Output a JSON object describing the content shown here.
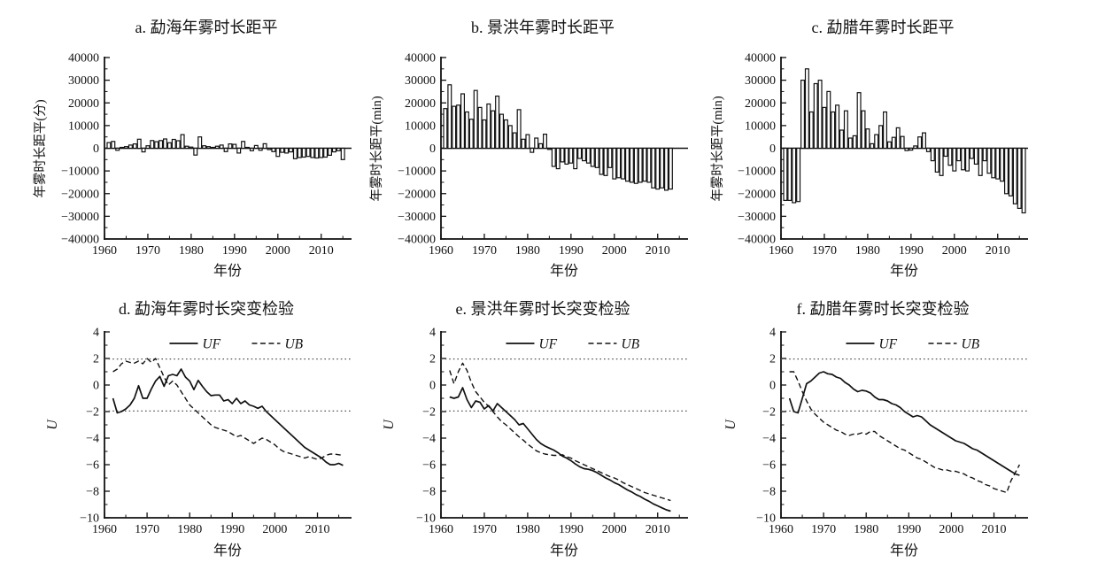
{
  "chart_data": [
    {
      "id": "a",
      "type": "bar",
      "title": "a. 勐海年雾时长距平",
      "xlabel": "年份",
      "ylabel": "年雾时长距平(分)",
      "ylim": [
        -40000,
        40000
      ],
      "ytick_step": 10000,
      "xlim": [
        1960,
        2017
      ],
      "xticks": [
        1960,
        1970,
        1980,
        1990,
        2000,
        2010
      ],
      "start_year": 1961,
      "values": [
        2500,
        3000,
        -900,
        400,
        700,
        1400,
        1900,
        4000,
        -1600,
        1100,
        3400,
        2900,
        3400,
        4100,
        2400,
        3900,
        3300,
        6000,
        900,
        500,
        -3000,
        5000,
        1100,
        700,
        400,
        900,
        1400,
        -1500,
        1900,
        1700,
        -2100,
        3000,
        400,
        -1100,
        1200,
        -900,
        2000,
        -600,
        -1500,
        -3600,
        -1800,
        -2100,
        -1600,
        -4600,
        -4100,
        -3900,
        -3600,
        -4100,
        -4300,
        -4100,
        -3900,
        -3100,
        -1600,
        -1100,
        -5000
      ]
    },
    {
      "id": "b",
      "type": "bar",
      "title": "b. 景洪年雾时长距平",
      "xlabel": "年份",
      "ylabel": "年雾时长距平(min)",
      "ylim": [
        -40000,
        40000
      ],
      "ytick_step": 10000,
      "xlim": [
        1960,
        2017
      ],
      "xticks": [
        1960,
        1970,
        1980,
        1990,
        2000,
        2010
      ],
      "start_year": 1961,
      "values": [
        17500,
        28000,
        18500,
        19000,
        24000,
        16000,
        12800,
        25500,
        18000,
        12500,
        19500,
        16500,
        23000,
        15000,
        12500,
        10000,
        6800,
        17000,
        4000,
        6000,
        -1800,
        4500,
        2000,
        6200,
        -500,
        -8000,
        -9000,
        -6000,
        -7000,
        -6500,
        -9000,
        -4500,
        -5500,
        -6500,
        -8000,
        -8500,
        -11500,
        -12000,
        -8500,
        -13500,
        -13000,
        -13500,
        -14500,
        -15000,
        -15500,
        -15000,
        -14500,
        -15000,
        -17500,
        -18000,
        -17500,
        -18500,
        -18000
      ]
    },
    {
      "id": "c",
      "type": "bar",
      "title": "c. 勐腊年雾时长距平",
      "xlabel": "年份",
      "ylabel": "年雾时长距平(min)",
      "ylim": [
        -40000,
        40000
      ],
      "ytick_step": 10000,
      "xlim": [
        1960,
        2017
      ],
      "xticks": [
        1960,
        1970,
        1980,
        1990,
        2000,
        2010
      ],
      "start_year": 1961,
      "values": [
        -23000,
        -23000,
        -24000,
        -23500,
        30000,
        35000,
        16000,
        28500,
        30000,
        18000,
        25000,
        16000,
        19000,
        8000,
        16500,
        4500,
        5500,
        24500,
        16500,
        8500,
        2000,
        6000,
        10000,
        16000,
        2800,
        4800,
        9000,
        5200,
        -1000,
        -800,
        1000,
        5000,
        6800,
        -1500,
        -5500,
        -10500,
        -12000,
        -3500,
        -7500,
        -10000,
        -5500,
        -9500,
        -10000,
        -4500,
        -7000,
        -12000,
        -5500,
        -11000,
        -13000,
        -13500,
        -14500,
        -20000,
        -21000,
        -24500,
        -26500,
        -28500
      ]
    },
    {
      "id": "d",
      "type": "line",
      "title": "d. 勐海年雾时长突变检验",
      "xlabel": "年份",
      "ylabel": "U",
      "ylim": [
        -10,
        4
      ],
      "ytick_step": 2,
      "xlim": [
        1960,
        2018
      ],
      "xticks": [
        1960,
        1970,
        1980,
        1990,
        2000,
        2010
      ],
      "start_year": 1962,
      "critical_value": 1.96,
      "legend": [
        "UF",
        "UB"
      ],
      "series": [
        {
          "name": "UF",
          "style": "solid",
          "values": [
            -1.0,
            -2.1,
            -2.0,
            -1.8,
            -1.5,
            -1.0,
            -0.05,
            -1.0,
            -1.0,
            -0.3,
            0.3,
            0.65,
            -0.1,
            0.7,
            0.8,
            0.7,
            1.2,
            0.6,
            0.3,
            -0.35,
            0.35,
            -0.1,
            -0.5,
            -0.8,
            -0.75,
            -0.75,
            -1.2,
            -1.1,
            -1.4,
            -1.0,
            -1.4,
            -1.2,
            -1.5,
            -1.6,
            -1.75,
            -1.6,
            -2.0,
            -2.3,
            -2.6,
            -2.9,
            -3.2,
            -3.5,
            -3.8,
            -4.1,
            -4.4,
            -4.7,
            -4.9,
            -5.1,
            -5.3,
            -5.5,
            -5.8,
            -6.0,
            -6.0,
            -5.9,
            -6.05
          ]
        },
        {
          "name": "UB",
          "style": "dashed",
          "values": [
            1.0,
            1.2,
            1.6,
            1.8,
            1.7,
            1.65,
            1.8,
            1.6,
            2.0,
            1.7,
            2.0,
            1.3,
            0.6,
            0.0,
            0.3,
            0.0,
            -0.5,
            -1.0,
            -1.5,
            -1.8,
            -2.1,
            -2.4,
            -2.7,
            -3.0,
            -3.2,
            -3.3,
            -3.4,
            -3.5,
            -3.7,
            -3.9,
            -3.8,
            -4.0,
            -4.2,
            -4.4,
            -4.2,
            -4.0,
            -4.1,
            -4.3,
            -4.5,
            -4.8,
            -5.0,
            -5.1,
            -5.2,
            -5.3,
            -5.4,
            -5.5,
            -5.4,
            -5.5,
            -5.6,
            -5.5,
            -5.3,
            -5.2,
            -5.2,
            -5.25,
            -5.3
          ]
        }
      ]
    },
    {
      "id": "e",
      "type": "line",
      "title": "e. 景洪年雾时长突变检验",
      "xlabel": "年份",
      "ylabel": "U",
      "ylim": [
        -10,
        4
      ],
      "ytick_step": 2,
      "xlim": [
        1960,
        2017
      ],
      "xticks": [
        1960,
        1970,
        1980,
        1990,
        2000,
        2010
      ],
      "start_year": 1962,
      "critical_value": 1.96,
      "legend": [
        "UF",
        "UB"
      ],
      "series": [
        {
          "name": "UF",
          "style": "solid",
          "values": [
            -0.9,
            -1.0,
            -0.9,
            -0.2,
            -1.1,
            -1.7,
            -1.2,
            -1.3,
            -1.8,
            -1.55,
            -1.95,
            -1.4,
            -1.7,
            -2.0,
            -2.3,
            -2.6,
            -3.0,
            -2.9,
            -3.3,
            -3.7,
            -4.1,
            -4.4,
            -4.6,
            -4.75,
            -4.9,
            -5.1,
            -5.35,
            -5.5,
            -5.7,
            -5.95,
            -6.15,
            -6.3,
            -6.35,
            -6.45,
            -6.6,
            -6.8,
            -7.0,
            -7.15,
            -7.35,
            -7.5,
            -7.7,
            -7.9,
            -8.05,
            -8.25,
            -8.4,
            -8.6,
            -8.75,
            -8.95,
            -9.1,
            -9.25,
            -9.4,
            -9.5
          ]
        },
        {
          "name": "UB",
          "style": "dashed",
          "values": [
            1.1,
            0.1,
            1.0,
            1.65,
            1.1,
            0.2,
            -0.5,
            -0.9,
            -1.3,
            -1.6,
            -2.0,
            -2.4,
            -2.75,
            -3.0,
            -3.3,
            -3.6,
            -3.9,
            -4.15,
            -4.45,
            -4.7,
            -4.95,
            -5.1,
            -5.2,
            -5.25,
            -5.3,
            -5.3,
            -5.25,
            -5.4,
            -5.5,
            -5.7,
            -5.85,
            -6.0,
            -6.15,
            -6.3,
            -6.45,
            -6.6,
            -6.75,
            -6.9,
            -7.0,
            -7.15,
            -7.35,
            -7.5,
            -7.65,
            -7.8,
            -7.95,
            -8.1,
            -8.2,
            -8.3,
            -8.4,
            -8.5,
            -8.6,
            -8.7
          ]
        }
      ]
    },
    {
      "id": "f",
      "type": "line",
      "title": "f. 勐腊年雾时长突变检验",
      "xlabel": "年份",
      "ylabel": "U",
      "ylim": [
        -10,
        4
      ],
      "ytick_step": 2,
      "xlim": [
        1960,
        2018
      ],
      "xticks": [
        1960,
        1970,
        1980,
        1990,
        2000,
        2010
      ],
      "start_year": 1962,
      "critical_value": 1.96,
      "legend": [
        "UF",
        "UB"
      ],
      "series": [
        {
          "name": "UF",
          "style": "solid",
          "values": [
            -1.0,
            -2.0,
            -2.1,
            -1.0,
            0.1,
            0.3,
            0.6,
            0.9,
            1.0,
            0.85,
            0.8,
            0.6,
            0.5,
            0.2,
            0.0,
            -0.3,
            -0.5,
            -0.4,
            -0.45,
            -0.6,
            -0.9,
            -1.1,
            -1.1,
            -1.2,
            -1.4,
            -1.5,
            -1.7,
            -2.0,
            -2.2,
            -2.4,
            -2.3,
            -2.4,
            -2.7,
            -3.0,
            -3.2,
            -3.4,
            -3.6,
            -3.8,
            -4.0,
            -4.2,
            -4.3,
            -4.4,
            -4.6,
            -4.8,
            -4.9,
            -5.1,
            -5.3,
            -5.5,
            -5.7,
            -5.9,
            -6.1,
            -6.3,
            -6.5,
            -6.7,
            -6.8
          ]
        },
        {
          "name": "UB",
          "style": "dashed",
          "values": [
            1.0,
            1.0,
            0.3,
            -0.5,
            -1.2,
            -1.8,
            -2.2,
            -2.5,
            -2.8,
            -3.0,
            -3.2,
            -3.4,
            -3.5,
            -3.7,
            -3.8,
            -3.7,
            -3.7,
            -3.6,
            -3.7,
            -3.5,
            -3.5,
            -3.8,
            -4.0,
            -4.2,
            -4.4,
            -4.6,
            -4.8,
            -4.9,
            -5.1,
            -5.3,
            -5.5,
            -5.6,
            -5.8,
            -6.0,
            -6.2,
            -6.3,
            -6.4,
            -6.4,
            -6.5,
            -6.5,
            -6.6,
            -6.7,
            -6.9,
            -7.0,
            -7.2,
            -7.3,
            -7.5,
            -7.6,
            -7.8,
            -7.9,
            -8.0,
            -8.1,
            -7.2,
            -6.6,
            -6.0
          ]
        }
      ]
    }
  ]
}
